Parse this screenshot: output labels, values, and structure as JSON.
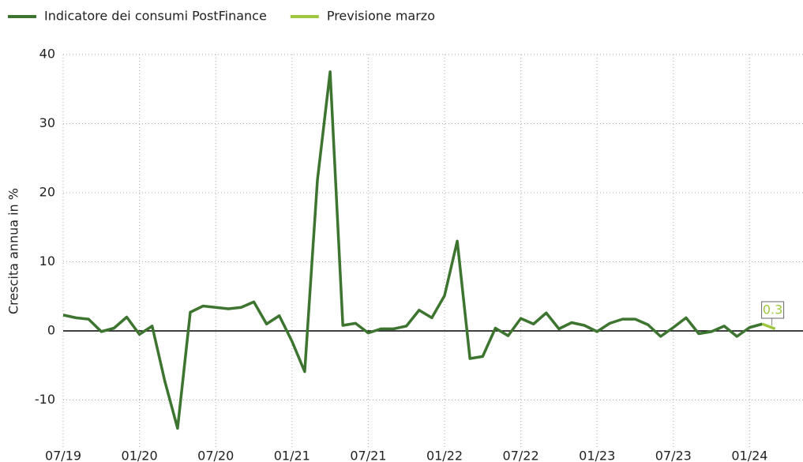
{
  "chart_data": {
    "type": "line",
    "y_label": "Crescita annua in %",
    "categories": [
      "07/19",
      null,
      null,
      null,
      null,
      null,
      "01/20",
      null,
      null,
      null,
      null,
      null,
      "07/20",
      null,
      null,
      null,
      null,
      null,
      "01/21",
      null,
      null,
      null,
      null,
      null,
      "07/21",
      null,
      null,
      null,
      null,
      null,
      "01/22",
      null,
      null,
      null,
      null,
      null,
      "07/22",
      null,
      null,
      null,
      null,
      null,
      "01/23",
      null,
      null,
      null,
      null,
      null,
      "07/23",
      null,
      null,
      null,
      null,
      null,
      "01/24",
      null,
      null
    ],
    "series": [
      {
        "name": "Indicatore dei consumi PostFinance",
        "color": "#3d7530",
        "values": [
          2.3,
          1.9,
          1.7,
          -0.1,
          0.4,
          2.0,
          -0.5,
          0.7,
          -7.3,
          -14.1,
          2.7,
          3.6,
          3.4,
          3.2,
          3.4,
          4.2,
          1.0,
          2.2,
          -1.5,
          -5.9,
          21.8,
          37.5,
          0.8,
          1.1,
          -0.3,
          0.3,
          0.3,
          0.7,
          3.0,
          1.9,
          5.1,
          13.0,
          -4.0,
          -3.7,
          0.4,
          -0.7,
          1.8,
          1.0,
          2.6,
          0.3,
          1.2,
          0.8,
          -0.1,
          1.1,
          1.7,
          1.7,
          0.9,
          -0.8,
          0.5,
          1.9,
          -0.4,
          -0.1,
          0.7,
          -0.8,
          0.5,
          1.0,
          null
        ]
      },
      {
        "name": "Previsione marzo",
        "color": "#9cc73f",
        "values": [
          null,
          null,
          null,
          null,
          null,
          null,
          null,
          null,
          null,
          null,
          null,
          null,
          null,
          null,
          null,
          null,
          null,
          null,
          null,
          null,
          null,
          null,
          null,
          null,
          null,
          null,
          null,
          null,
          null,
          null,
          null,
          null,
          null,
          null,
          null,
          null,
          null,
          null,
          null,
          null,
          null,
          null,
          null,
          null,
          null,
          null,
          null,
          null,
          null,
          null,
          null,
          null,
          null,
          null,
          null,
          1.0,
          0.3
        ]
      }
    ],
    "ylim": [
      -17,
      40
    ],
    "yticks": [
      -10,
      0,
      10,
      20,
      30,
      40
    ],
    "grid": true,
    "legend": "top-left"
  }
}
